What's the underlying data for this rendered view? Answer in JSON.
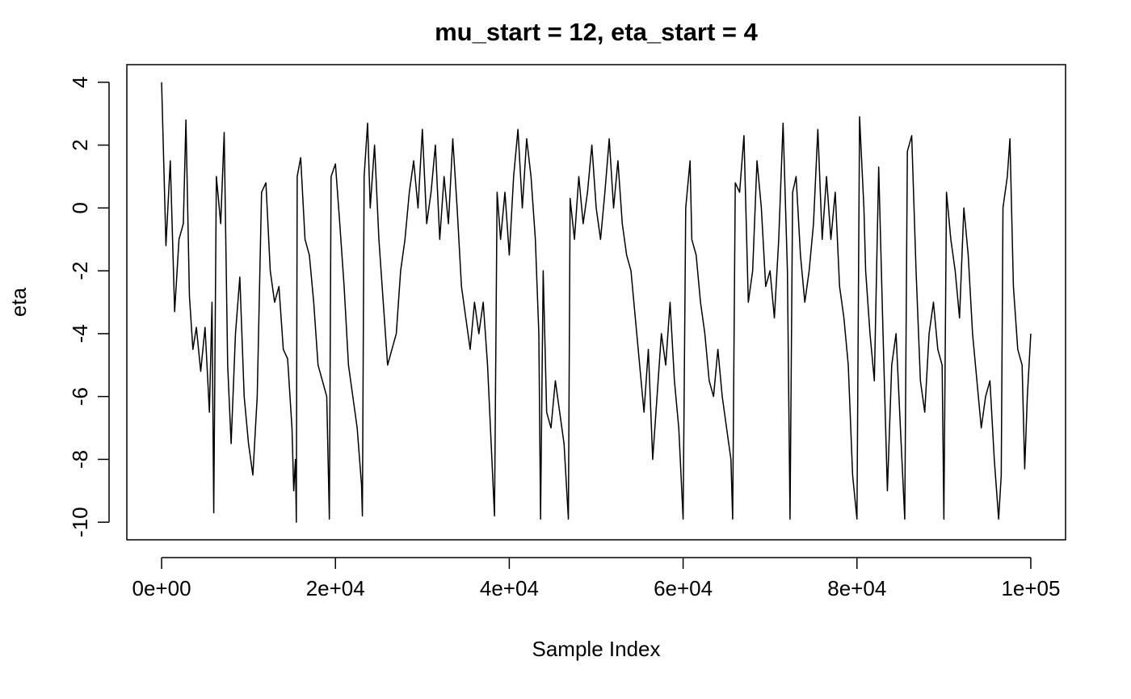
{
  "chart_data": {
    "type": "line",
    "title": "mu_start = 12, eta_start = 4",
    "x_label": "Sample Index",
    "y_label": "eta",
    "color": "#000000",
    "xlim": [
      -4000,
      104000
    ],
    "ylim": [
      -10.56,
      4.56
    ],
    "xticks": [
      {
        "value": 0,
        "label": "0e+00"
      },
      {
        "value": 20000,
        "label": "2e+04"
      },
      {
        "value": 40000,
        "label": "4e+04"
      },
      {
        "value": 60000,
        "label": "6e+04"
      },
      {
        "value": 80000,
        "label": "8e+04"
      },
      {
        "value": 100000,
        "label": "1e+05"
      }
    ],
    "yticks": [
      -10,
      -8,
      -6,
      -4,
      -2,
      0,
      2,
      4
    ],
    "x": [
      0,
      500,
      1000,
      1500,
      2000,
      2500,
      2800,
      3200,
      3600,
      4000,
      4500,
      5000,
      5500,
      5800,
      6000,
      6300,
      6800,
      7200,
      7600,
      8000,
      8500,
      9000,
      9500,
      10000,
      10500,
      11000,
      11500,
      12000,
      12500,
      13000,
      13500,
      14000,
      14500,
      15000,
      15200,
      15400,
      15500,
      15600,
      16000,
      16500,
      17000,
      17500,
      18000,
      18500,
      19000,
      19300,
      19500,
      20000,
      20500,
      21000,
      21500,
      22000,
      22500,
      23000,
      23100,
      23300,
      23700,
      24000,
      24500,
      25000,
      25500,
      26000,
      26500,
      27000,
      27500,
      28000,
      28500,
      29000,
      29500,
      30000,
      30500,
      31000,
      31500,
      32000,
      32500,
      33000,
      33500,
      34000,
      34500,
      35000,
      35500,
      36000,
      36500,
      37000,
      37500,
      38000,
      38300,
      38600,
      39000,
      39500,
      40000,
      40500,
      41000,
      41500,
      42000,
      42500,
      43000,
      43400,
      43600,
      43900,
      44300,
      44800,
      45300,
      45800,
      46300,
      46800,
      47000,
      47500,
      48000,
      48500,
      49000,
      49500,
      50000,
      50500,
      51000,
      51500,
      52000,
      52500,
      53000,
      53500,
      54000,
      54500,
      55000,
      55500,
      56000,
      56500,
      57000,
      57500,
      58000,
      58500,
      59000,
      59500,
      60000,
      60300,
      60800,
      61000,
      61500,
      62000,
      62500,
      63000,
      63500,
      64000,
      64500,
      65000,
      65500,
      65700,
      66000,
      66500,
      67000,
      67500,
      68000,
      68500,
      69000,
      69500,
      70000,
      70500,
      71000,
      71500,
      72000,
      72300,
      72600,
      73000,
      73500,
      74000,
      74500,
      75000,
      75500,
      76000,
      76500,
      77000,
      77500,
      78000,
      78500,
      79000,
      79500,
      80000,
      80300,
      80800,
      81000,
      81500,
      82000,
      82500,
      83000,
      83500,
      84000,
      84500,
      85000,
      85500,
      85800,
      86300,
      86800,
      87300,
      87800,
      88300,
      88800,
      89300,
      89800,
      90000,
      90300,
      90800,
      91300,
      91800,
      92300,
      92800,
      93300,
      93800,
      94300,
      94800,
      95300,
      95800,
      96300,
      96600,
      96800,
      97300,
      97600,
      98000,
      98500,
      99000,
      99300,
      99600,
      100000
    ],
    "values": [
      4,
      -1.2,
      1.5,
      -3.3,
      -1,
      -0.5,
      2.8,
      -2.8,
      -4.5,
      -3.8,
      -5.2,
      -3.8,
      -6.5,
      -3,
      -9.7,
      1,
      -0.5,
      2.4,
      -5,
      -7.5,
      -4,
      -2.2,
      -6,
      -7.5,
      -8.5,
      -6,
      0.5,
      0.8,
      -2,
      -3,
      -2.5,
      -4.5,
      -4.8,
      -7,
      -9,
      -8,
      -10,
      1,
      1.6,
      -1,
      -1.5,
      -3,
      -5,
      -5.5,
      -6,
      -9.9,
      1,
      1.4,
      -0.5,
      -2.5,
      -5,
      -6,
      -7,
      -8.8,
      -9.8,
      1,
      2.7,
      0,
      2,
      -1,
      -3,
      -5,
      -4.5,
      -4,
      -2,
      -1,
      0.5,
      1.5,
      0,
      2.5,
      -0.5,
      0.5,
      2,
      -1,
      1,
      -0.5,
      2.2,
      0,
      -2.5,
      -3.5,
      -4.5,
      -3,
      -4,
      -3,
      -5,
      -8,
      -9.8,
      0.5,
      -1,
      0.5,
      -1.5,
      1,
      2.5,
      0,
      2.2,
      1,
      -1,
      -4,
      -9.9,
      -2,
      -6.5,
      -7,
      -5.5,
      -6.5,
      -7.5,
      -9.9,
      0.3,
      -1,
      1,
      -0.5,
      0.5,
      2,
      0,
      -1,
      0.5,
      2.2,
      0,
      1.5,
      -0.5,
      -1.5,
      -2,
      -3.5,
      -5,
      -6.5,
      -4.5,
      -8,
      -6,
      -4,
      -5,
      -3,
      -5.5,
      -7,
      -9.9,
      0,
      1.5,
      -1,
      -1.5,
      -3,
      -4,
      -5.5,
      -6,
      -4.5,
      -6,
      -7,
      -8,
      -9.9,
      0.8,
      0.5,
      2.3,
      -3,
      -2,
      1.5,
      0,
      -2.5,
      -2,
      -3.5,
      -1,
      2.7,
      -2,
      -9.9,
      0.5,
      1,
      -1.5,
      -3,
      -2,
      -0.5,
      2.5,
      -1,
      1,
      -1,
      0.5,
      -2.5,
      -3.5,
      -5,
      -8.5,
      -9.9,
      2.9,
      0,
      -2,
      -4,
      -5.5,
      1.3,
      -4,
      -9,
      -5,
      -4,
      -7,
      -9.9,
      1.8,
      2.3,
      -2,
      -5.5,
      -6.5,
      -4,
      -3,
      -4.5,
      -5,
      -9.9,
      0.5,
      -1,
      -2,
      -3.5,
      0,
      -1.5,
      -4,
      -5.5,
      -7,
      -6,
      -5.5,
      -8,
      -9.9,
      -8.5,
      0,
      1,
      2.2,
      -2.5,
      -4.5,
      -5,
      -8.3,
      -6,
      -4
    ]
  }
}
